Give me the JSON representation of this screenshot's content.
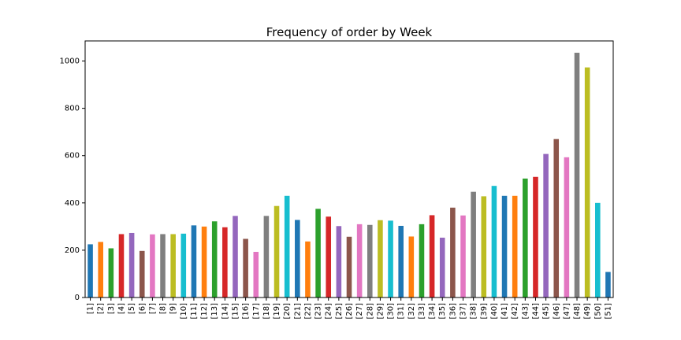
{
  "chart_data": {
    "type": "bar",
    "title": "Frequency of order by Week",
    "xlabel": "",
    "ylabel": "",
    "ylim": [
      0,
      1085
    ],
    "yticks": [
      0,
      200,
      400,
      600,
      800,
      1000
    ],
    "grid": false,
    "legend": "none",
    "categories": [
      "[1]",
      "[2]",
      "[3]",
      "[4]",
      "[5]",
      "[6]",
      "[7]",
      "[8]",
      "[9]",
      "[10]",
      "[11]",
      "[12]",
      "[13]",
      "[14]",
      "[15]",
      "[16]",
      "[17]",
      "[18]",
      "[19]",
      "[20]",
      "[21]",
      "[22]",
      "[23]",
      "[24]",
      "[25]",
      "[26]",
      "[27]",
      "[28]",
      "[29]",
      "[30]",
      "[31]",
      "[32]",
      "[33]",
      "[34]",
      "[35]",
      "[36]",
      "[37]",
      "[38]",
      "[39]",
      "[40]",
      "[41]",
      "[42]",
      "[43]",
      "[44]",
      "[45]",
      "[46]",
      "[47]",
      "[48]",
      "[49]",
      "[50]",
      "[51]"
    ],
    "values": [
      225,
      235,
      208,
      268,
      273,
      197,
      267,
      268,
      268,
      270,
      305,
      300,
      322,
      297,
      345,
      248,
      193,
      345,
      387,
      430,
      328,
      237,
      375,
      342,
      302,
      257,
      310,
      307,
      327,
      325,
      303,
      258,
      310,
      348,
      253,
      380,
      347,
      447,
      428,
      472,
      430,
      430,
      503,
      510,
      607,
      670,
      593,
      1035,
      973,
      400,
      108
    ],
    "colors": [
      "#1f77b4",
      "#ff7f0e",
      "#2ca02c",
      "#d62728",
      "#9467bd",
      "#8c564b",
      "#e377c2",
      "#7f7f7f",
      "#bcbd22",
      "#17becf"
    ]
  }
}
